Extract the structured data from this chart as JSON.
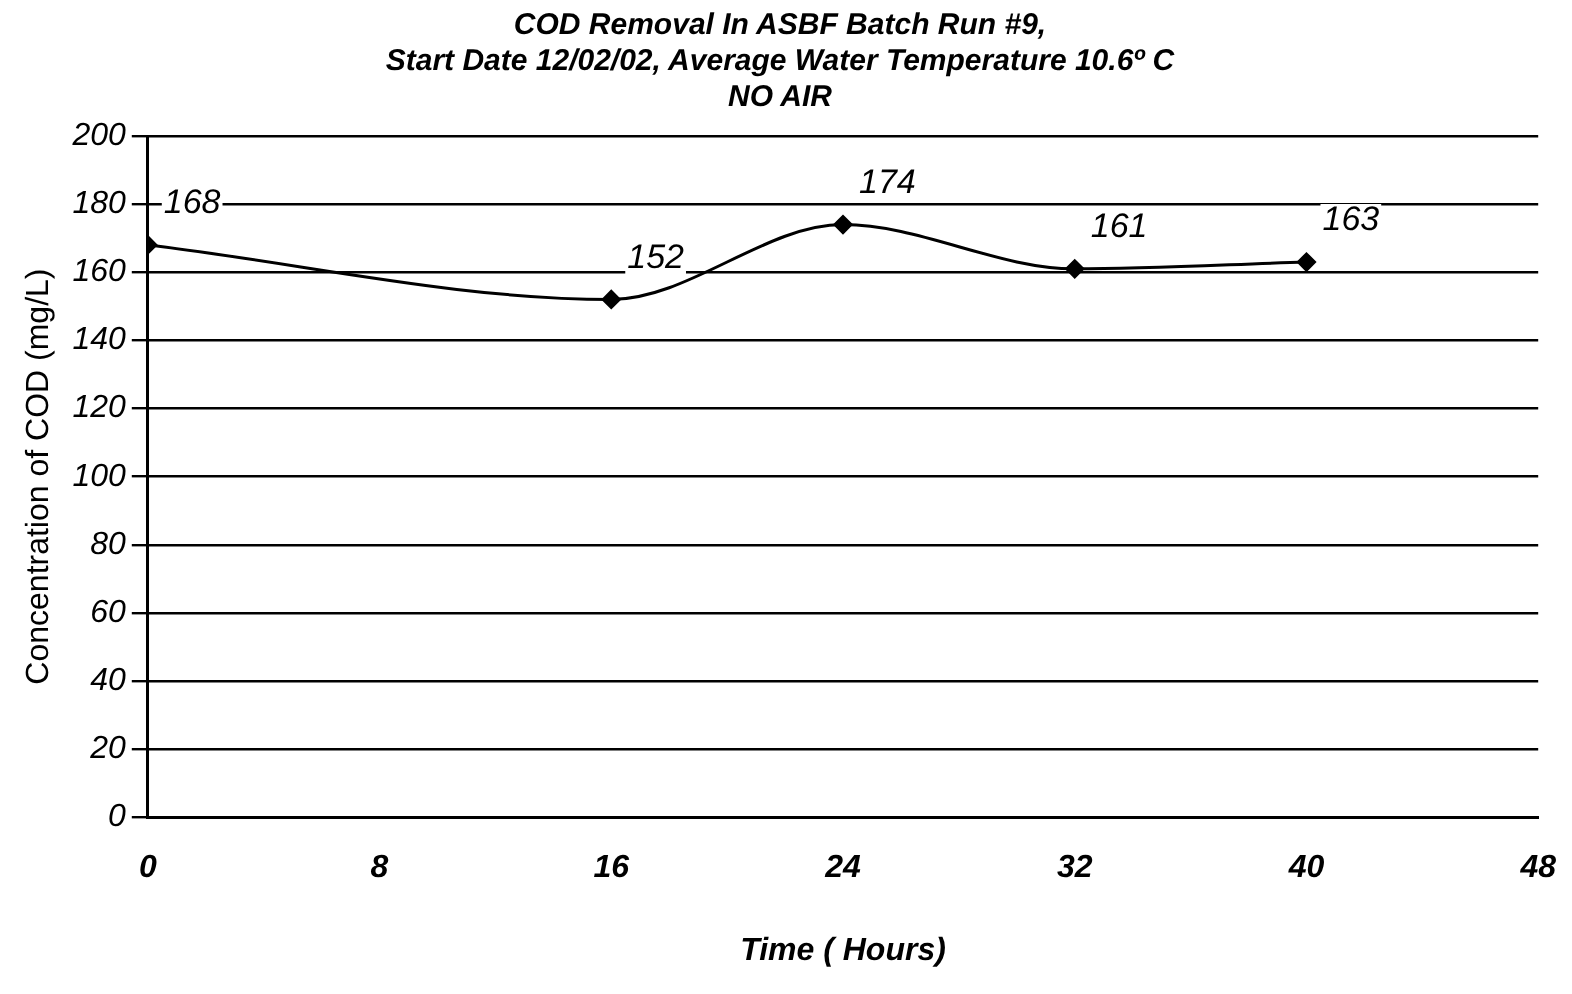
{
  "chart_data": {
    "type": "line",
    "title": [
      "COD Removal In ASBF Batch Run #9,",
      "Start Date 12/02/02, Average Water Temperature 10.6º C",
      "NO AIR"
    ],
    "xlabel": "Time ( Hours)",
    "ylabel": "Concentration of COD (mg/L)",
    "x": [
      0,
      16,
      24,
      32,
      40
    ],
    "series": [
      {
        "color": "#000000",
        "values": [
          168,
          152,
          174,
          161,
          163
        ]
      }
    ],
    "xlim": [
      0,
      48
    ],
    "xticks": [
      0,
      8,
      16,
      24,
      32,
      40,
      48
    ],
    "ylim": [
      0,
      200
    ],
    "yticks": [
      0,
      20,
      40,
      60,
      80,
      100,
      120,
      140,
      160,
      180,
      200
    ],
    "grid": "y",
    "legend": false,
    "marker": "diamond",
    "line_style": "solid",
    "data_labels": true
  }
}
